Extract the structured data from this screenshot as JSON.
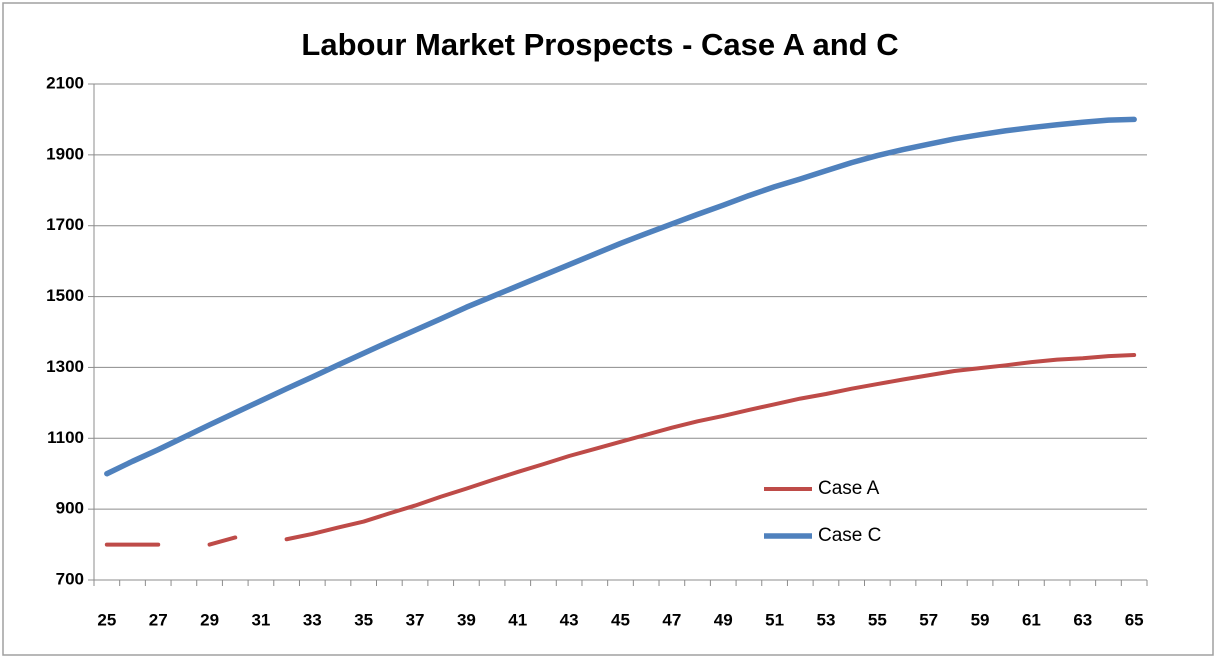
{
  "chart_data": {
    "type": "line",
    "title": "Labour Market Prospects - Case A and C",
    "categories": [
      "25",
      null,
      "27",
      null,
      "29",
      null,
      "31",
      null,
      "33",
      null,
      "35",
      null,
      "37",
      null,
      "39",
      null,
      "41",
      null,
      "43",
      null,
      "45",
      null,
      "47",
      null,
      "49",
      null,
      "51",
      null,
      "53",
      null,
      "55",
      null,
      "57",
      null,
      "59",
      null,
      "61",
      null,
      "63",
      null,
      "65"
    ],
    "series": [
      {
        "name": "Case A",
        "color": "#be4b48",
        "values": [
          800,
          800,
          800,
          null,
          800,
          820,
          null,
          815,
          830,
          848,
          865,
          888,
          910,
          935,
          958,
          982,
          1005,
          1027,
          1050,
          1070,
          1090,
          1110,
          1130,
          1148,
          1163,
          1180,
          1196,
          1212,
          1225,
          1240,
          1253,
          1266,
          1278,
          1290,
          1298,
          1306,
          1315,
          1322,
          1326,
          1332,
          1335
        ]
      },
      {
        "name": "Case C",
        "color": "#4f81bd",
        "values": [
          1000,
          1035,
          1068,
          1103,
          1138,
          1172,
          1206,
          1240,
          1273,
          1307,
          1340,
          1373,
          1405,
          1437,
          1470,
          1500,
          1530,
          1560,
          1590,
          1620,
          1650,
          1678,
          1705,
          1732,
          1758,
          1785,
          1810,
          1832,
          1855,
          1878,
          1898,
          1915,
          1930,
          1945,
          1957,
          1968,
          1977,
          1985,
          1992,
          1998,
          2000
        ]
      }
    ],
    "ylim": [
      700,
      2100
    ],
    "yticks": [
      700,
      900,
      1100,
      1300,
      1500,
      1700,
      1900,
      2100
    ],
    "grid": true,
    "legend": "right"
  }
}
